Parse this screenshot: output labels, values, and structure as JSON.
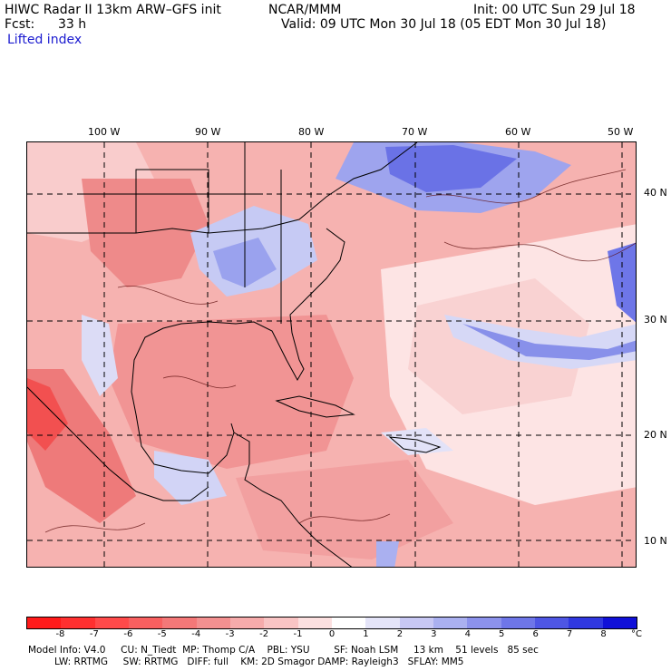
{
  "header": {
    "title": "HIWC Radar II 13km ARW–GFS init",
    "source": "NCAR/MMM",
    "init": "Init: 00 UTC Sun 29 Jul 18",
    "fcst_label": "Fcst:",
    "fcst_value": "33 h",
    "valid": "Valid: 09 UTC Mon 30 Jul 18 (05 EDT Mon 30 Jul 18)",
    "field": "Lifted index"
  },
  "longitudes": [
    "100 W",
    "90 W",
    "80 W",
    "70 W",
    "60 W",
    "50 W"
  ],
  "latitudes": [
    "40 N",
    "30 N",
    "20 N",
    "10 N"
  ],
  "colorbar": {
    "ticks": [
      "-8",
      "-7",
      "-6",
      "-5",
      "-4",
      "-3",
      "-2",
      "-1",
      "0",
      "1",
      "2",
      "3",
      "4",
      "5",
      "6",
      "7",
      "8"
    ],
    "unit": "°C",
    "colors": [
      "#ff1a1a",
      "#ff3030",
      "#ff4a4a",
      "#f86060",
      "#f47878",
      "#f39090",
      "#f6abab",
      "#f9c4c4",
      "#fce0e0",
      "#ffffff",
      "#e4e4f8",
      "#c8c8f4",
      "#aab0f0",
      "#8c92ec",
      "#6e76e8",
      "#4e56e4",
      "#3038e0",
      "#1010d8"
    ]
  },
  "footer": {
    "line1": "Model Info: V4.0     CU: N_Tiedt  MP: Thomp C/A    PBL: YSU        SF: Noah LSM     13 km    51 levels   85 sec",
    "line2": "LW: RRTMG     SW: RRTMG   DIFF: full    KM: 2D Smagor DAMP: Rayleigh3   SFLAY: MM5"
  }
}
